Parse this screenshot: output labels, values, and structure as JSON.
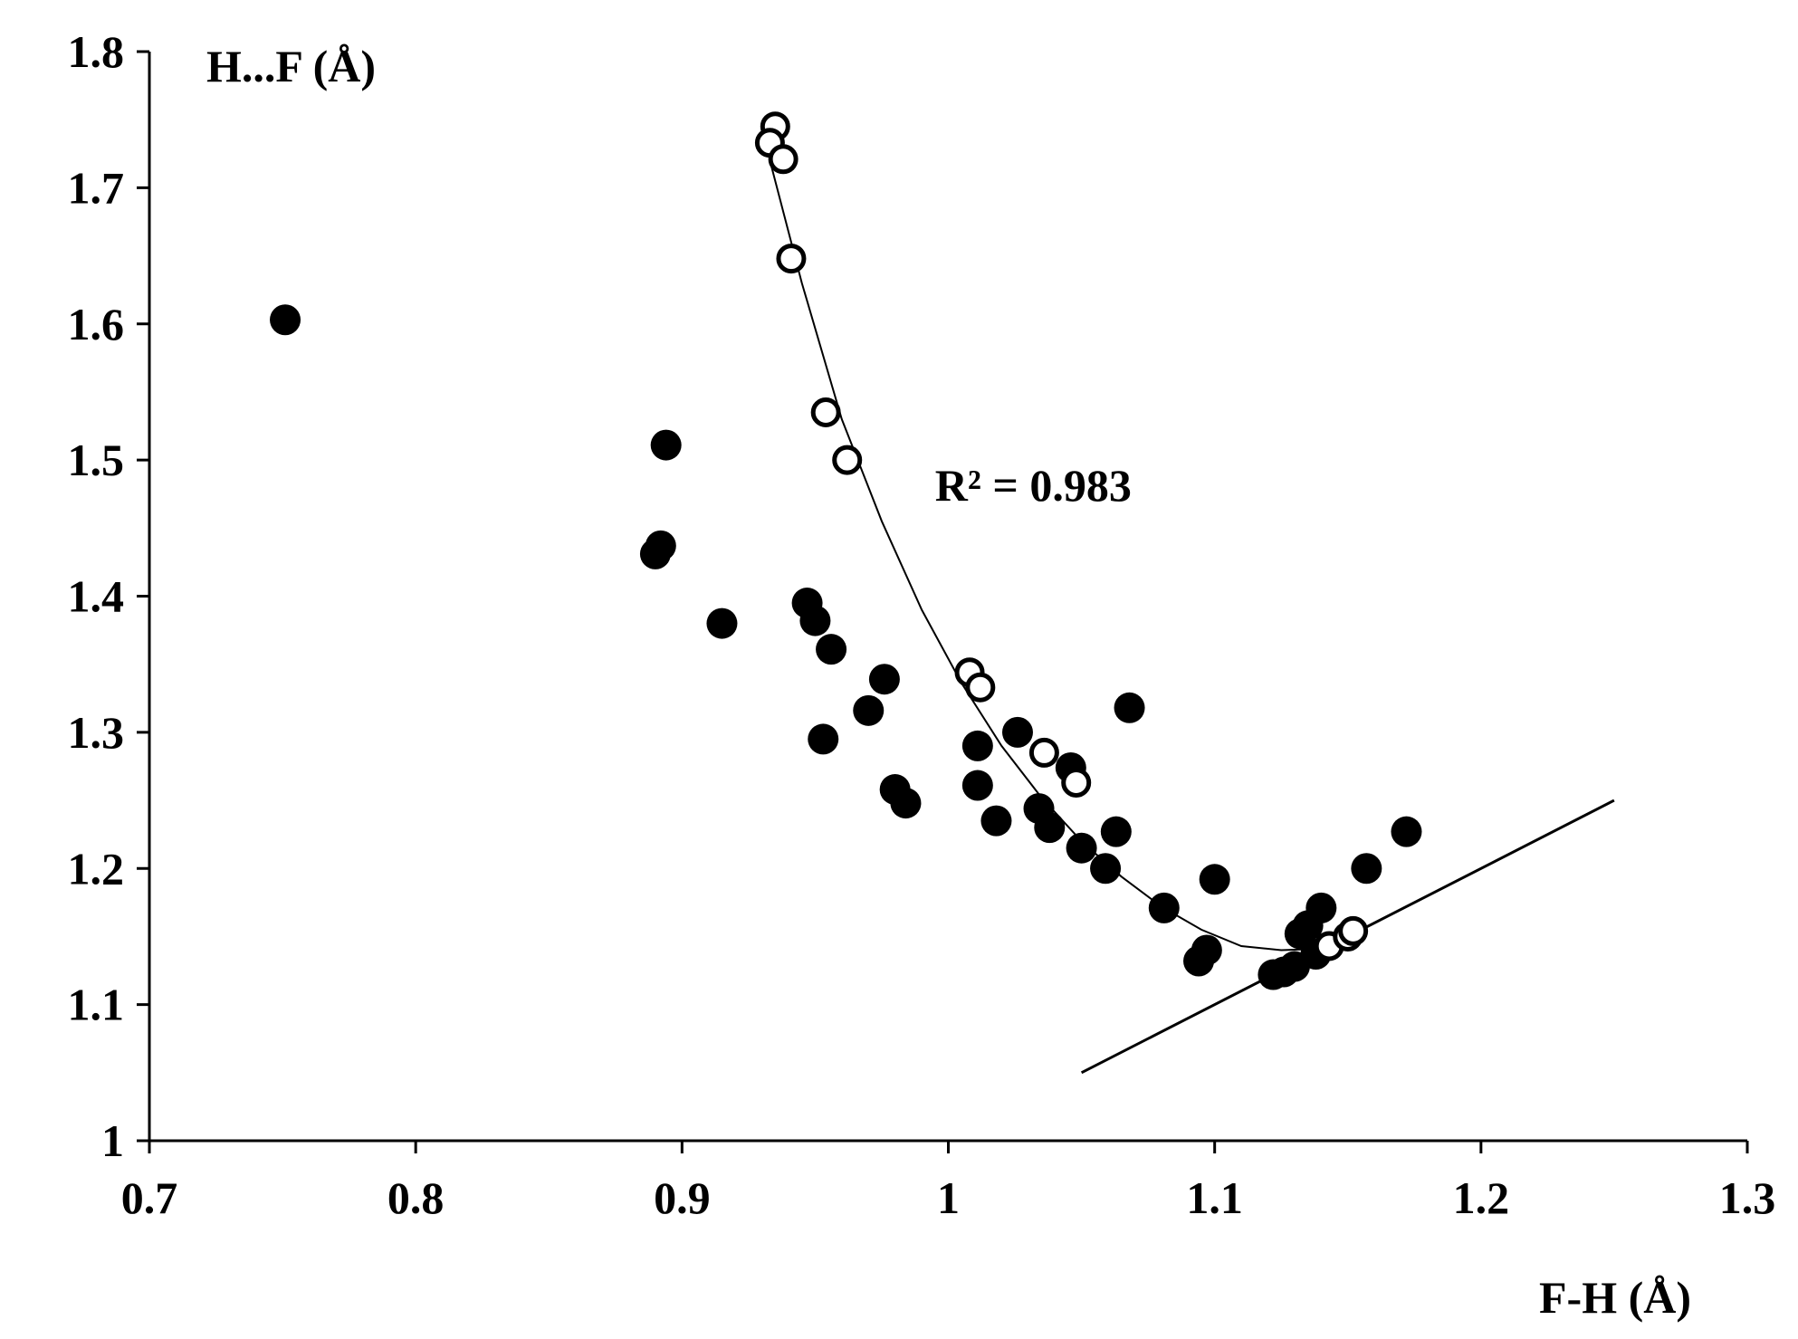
{
  "chart_data": {
    "type": "scatter",
    "xlabel": "F-H (Å)",
    "ylabel": "H...F (Å)",
    "xlim": [
      0.7,
      1.3
    ],
    "ylim": [
      1.0,
      1.8
    ],
    "xticks": [
      "0.7",
      "0.8",
      "0.9",
      "1",
      "1.1",
      "1.2",
      "1.3"
    ],
    "yticks": [
      "1",
      "1.1",
      "1.2",
      "1.3",
      "1.4",
      "1.5",
      "1.6",
      "1.7",
      "1.8"
    ],
    "grid": false,
    "annotations": [
      {
        "text": "R² = 0.983",
        "x": 0.995,
        "y": 1.47
      }
    ],
    "series": [
      {
        "marker": "filled-circle",
        "color": "#000000",
        "points": [
          [
            0.751,
            1.603
          ],
          [
            0.894,
            1.511
          ],
          [
            0.892,
            1.437
          ],
          [
            0.89,
            1.431
          ],
          [
            0.915,
            1.38
          ],
          [
            0.947,
            1.395
          ],
          [
            0.95,
            1.382
          ],
          [
            0.956,
            1.361
          ],
          [
            0.953,
            1.295
          ],
          [
            0.97,
            1.316
          ],
          [
            0.976,
            1.339
          ],
          [
            0.98,
            1.258
          ],
          [
            0.984,
            1.248
          ],
          [
            1.011,
            1.29
          ],
          [
            1.011,
            1.261
          ],
          [
            1.018,
            1.235
          ],
          [
            1.026,
            1.3
          ],
          [
            1.034,
            1.244
          ],
          [
            1.038,
            1.23
          ],
          [
            1.046,
            1.274
          ],
          [
            1.05,
            1.215
          ],
          [
            1.059,
            1.2
          ],
          [
            1.063,
            1.227
          ],
          [
            1.068,
            1.318
          ],
          [
            1.081,
            1.171
          ],
          [
            1.094,
            1.132
          ],
          [
            1.097,
            1.14
          ],
          [
            1.1,
            1.192
          ],
          [
            1.122,
            1.122
          ],
          [
            1.126,
            1.124
          ],
          [
            1.13,
            1.128
          ],
          [
            1.132,
            1.152
          ],
          [
            1.135,
            1.158
          ],
          [
            1.138,
            1.137
          ],
          [
            1.14,
            1.171
          ],
          [
            1.157,
            1.2
          ],
          [
            1.172,
            1.227
          ]
        ]
      },
      {
        "marker": "open-circle",
        "color": "#000000",
        "points": [
          [
            0.935,
            1.745
          ],
          [
            0.933,
            1.733
          ],
          [
            0.938,
            1.721
          ],
          [
            0.941,
            1.648
          ],
          [
            0.954,
            1.535
          ],
          [
            0.962,
            1.5
          ],
          [
            1.008,
            1.344
          ],
          [
            1.012,
            1.333
          ],
          [
            1.036,
            1.285
          ],
          [
            1.048,
            1.263
          ],
          [
            1.143,
            1.143
          ],
          [
            1.15,
            1.15
          ],
          [
            1.152,
            1.154
          ]
        ]
      }
    ],
    "lines": [
      {
        "kind": "polynomial-trendline",
        "color": "#000000",
        "points": [
          [
            0.933,
            1.72
          ],
          [
            0.945,
            1.63
          ],
          [
            0.96,
            1.53
          ],
          [
            0.975,
            1.455
          ],
          [
            0.99,
            1.39
          ],
          [
            1.005,
            1.336
          ],
          [
            1.02,
            1.29
          ],
          [
            1.035,
            1.252
          ],
          [
            1.05,
            1.22
          ],
          [
            1.065,
            1.194
          ],
          [
            1.08,
            1.172
          ],
          [
            1.095,
            1.155
          ],
          [
            1.11,
            1.143
          ],
          [
            1.125,
            1.14
          ],
          [
            1.14,
            1.141
          ],
          [
            1.153,
            1.15
          ]
        ]
      },
      {
        "kind": "straight-line",
        "color": "#000000",
        "points": [
          [
            1.05,
            1.05
          ],
          [
            1.25,
            1.25
          ]
        ]
      }
    ]
  }
}
